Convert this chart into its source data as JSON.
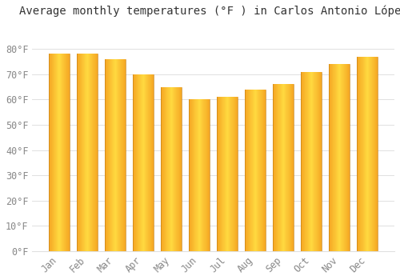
{
  "title": "Average monthly temperatures (°F ) in Carlos Antonio López",
  "months": [
    "Jan",
    "Feb",
    "Mar",
    "Apr",
    "May",
    "Jun",
    "Jul",
    "Aug",
    "Sep",
    "Oct",
    "Nov",
    "Dec"
  ],
  "values": [
    78,
    78,
    76,
    70,
    65,
    60,
    61,
    64,
    66,
    71,
    74,
    77
  ],
  "bar_color_edge": "#F5A623",
  "bar_color_center": "#FFD940",
  "background_color": "#FFFFFF",
  "grid_color": "#E0E0E0",
  "ylim": [
    0,
    90
  ],
  "yticks": [
    0,
    10,
    20,
    30,
    40,
    50,
    60,
    70,
    80
  ],
  "title_fontsize": 10,
  "tick_fontsize": 8.5,
  "tick_color": "#888888",
  "bar_edge_color": "#C8841A",
  "bar_width": 0.75,
  "n_gradient_strips": 50
}
